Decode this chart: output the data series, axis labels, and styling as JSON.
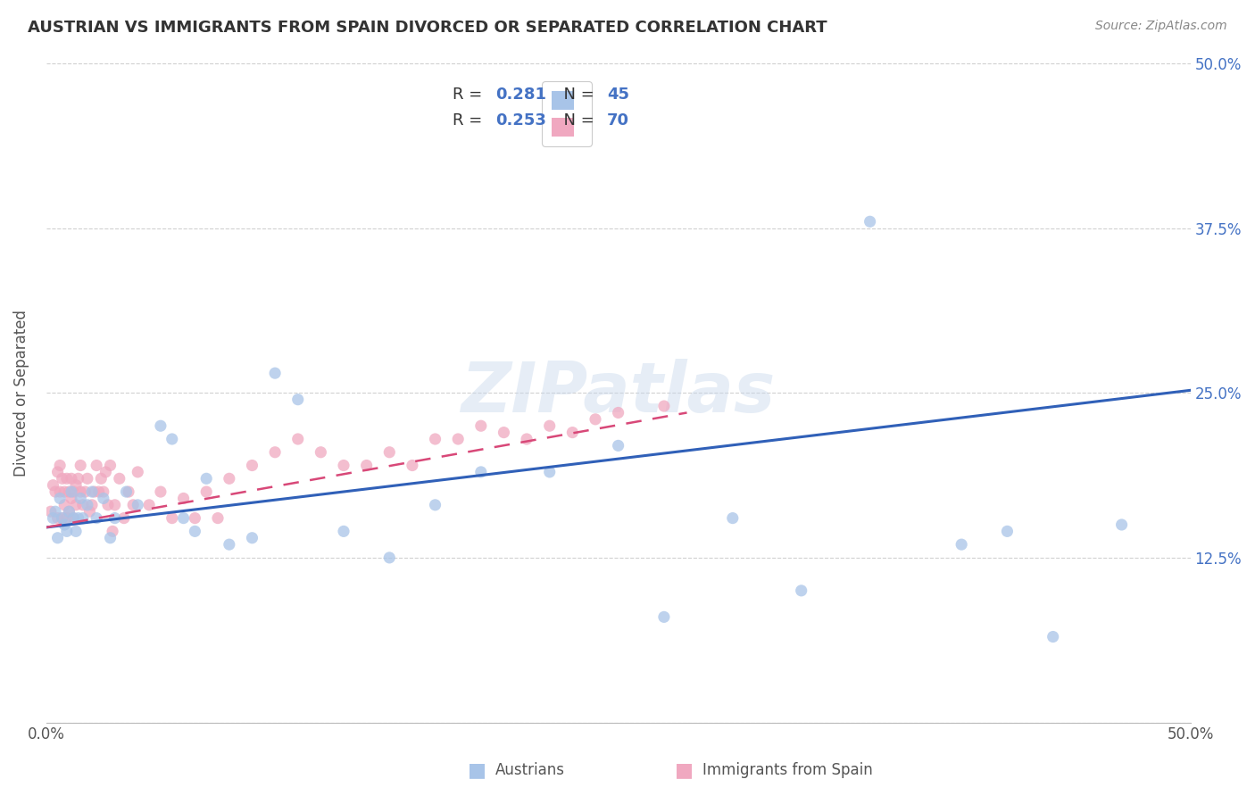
{
  "title": "AUSTRIAN VS IMMIGRANTS FROM SPAIN DIVORCED OR SEPARATED CORRELATION CHART",
  "source": "Source: ZipAtlas.com",
  "ylabel": "Divorced or Separated",
  "xlim": [
    0.0,
    0.5
  ],
  "ylim": [
    0.0,
    0.5
  ],
  "watermark": "ZIPatlas",
  "legend_R1": "R = 0.281",
  "legend_N1": "N = 45",
  "legend_R2": "R = 0.253",
  "legend_N2": "N = 70",
  "color_austrians": "#a8c4e8",
  "color_spain": "#f0a8c0",
  "color_line_austrians": "#3060b8",
  "color_line_spain": "#d84878",
  "background_color": "#ffffff",
  "grid_color": "#d0d0d0",
  "austrians_x": [
    0.003,
    0.004,
    0.005,
    0.006,
    0.007,
    0.008,
    0.009,
    0.01,
    0.011,
    0.012,
    0.013,
    0.014,
    0.015,
    0.016,
    0.018,
    0.02,
    0.022,
    0.025,
    0.028,
    0.03,
    0.035,
    0.04,
    0.05,
    0.055,
    0.06,
    0.065,
    0.07,
    0.08,
    0.09,
    0.1,
    0.11,
    0.13,
    0.15,
    0.17,
    0.19,
    0.22,
    0.25,
    0.27,
    0.3,
    0.33,
    0.36,
    0.4,
    0.42,
    0.44,
    0.47
  ],
  "austrians_y": [
    0.155,
    0.16,
    0.14,
    0.17,
    0.155,
    0.15,
    0.145,
    0.16,
    0.175,
    0.155,
    0.145,
    0.155,
    0.17,
    0.155,
    0.165,
    0.175,
    0.155,
    0.17,
    0.14,
    0.155,
    0.175,
    0.165,
    0.225,
    0.215,
    0.155,
    0.145,
    0.185,
    0.135,
    0.14,
    0.265,
    0.245,
    0.145,
    0.125,
    0.165,
    0.19,
    0.19,
    0.21,
    0.08,
    0.155,
    0.1,
    0.38,
    0.135,
    0.145,
    0.065,
    0.15
  ],
  "spain_x": [
    0.002,
    0.003,
    0.004,
    0.005,
    0.005,
    0.006,
    0.006,
    0.007,
    0.007,
    0.008,
    0.008,
    0.009,
    0.009,
    0.01,
    0.01,
    0.011,
    0.011,
    0.012,
    0.012,
    0.013,
    0.013,
    0.014,
    0.015,
    0.015,
    0.016,
    0.017,
    0.018,
    0.019,
    0.02,
    0.021,
    0.022,
    0.023,
    0.024,
    0.025,
    0.026,
    0.027,
    0.028,
    0.029,
    0.03,
    0.032,
    0.034,
    0.036,
    0.038,
    0.04,
    0.045,
    0.05,
    0.055,
    0.06,
    0.065,
    0.07,
    0.075,
    0.08,
    0.09,
    0.1,
    0.11,
    0.12,
    0.13,
    0.14,
    0.15,
    0.16,
    0.17,
    0.18,
    0.19,
    0.2,
    0.21,
    0.22,
    0.23,
    0.24,
    0.25,
    0.27
  ],
  "spain_y": [
    0.16,
    0.18,
    0.175,
    0.19,
    0.155,
    0.195,
    0.175,
    0.185,
    0.155,
    0.175,
    0.165,
    0.185,
    0.155,
    0.175,
    0.16,
    0.185,
    0.17,
    0.175,
    0.155,
    0.18,
    0.165,
    0.185,
    0.195,
    0.175,
    0.165,
    0.175,
    0.185,
    0.16,
    0.165,
    0.175,
    0.195,
    0.175,
    0.185,
    0.175,
    0.19,
    0.165,
    0.195,
    0.145,
    0.165,
    0.185,
    0.155,
    0.175,
    0.165,
    0.19,
    0.165,
    0.175,
    0.155,
    0.17,
    0.155,
    0.175,
    0.155,
    0.185,
    0.195,
    0.205,
    0.215,
    0.205,
    0.195,
    0.195,
    0.205,
    0.195,
    0.215,
    0.215,
    0.225,
    0.22,
    0.215,
    0.225,
    0.22,
    0.23,
    0.235,
    0.24
  ],
  "line_aus_x0": 0.0,
  "line_aus_x1": 0.5,
  "line_aus_y0": 0.148,
  "line_aus_y1": 0.252,
  "line_spain_x0": 0.0,
  "line_spain_x1": 0.28,
  "line_spain_y0": 0.148,
  "line_spain_y1": 0.235
}
